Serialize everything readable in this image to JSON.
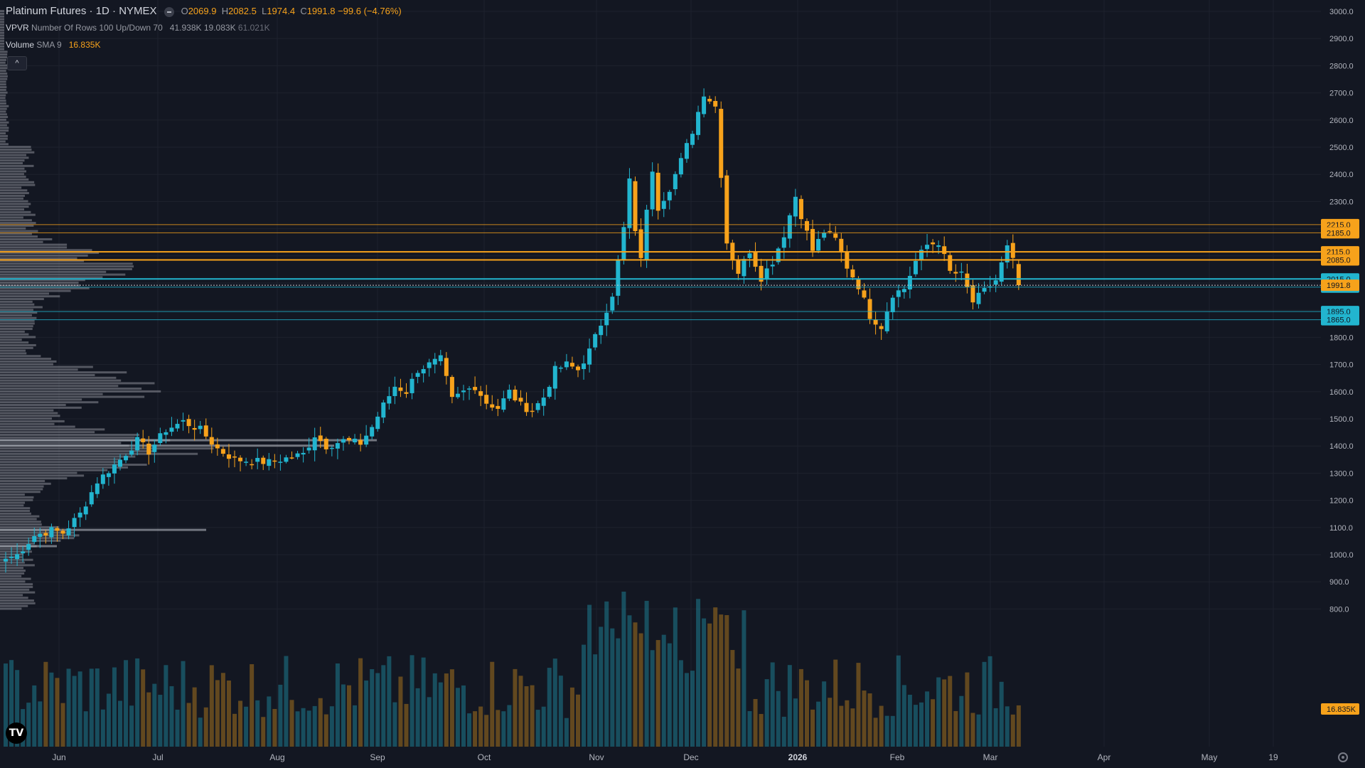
{
  "header": {
    "title": "Platinum Futures · 1D · NYMEX",
    "o_label": "O",
    "o_value": "2069.9",
    "h_label": "H",
    "h_value": "2082.5",
    "l_label": "L",
    "l_value": "1974.4",
    "c_label": "C",
    "c_value": "1991.8",
    "change": "−99.6 (−4.76%)"
  },
  "vpvr": {
    "name": "VPVR",
    "params": "Number Of Rows 100 Up/Down 70",
    "v1": "41.938K",
    "v2": "19.083K",
    "v3": "61.021K"
  },
  "volume_indicator": {
    "name": "Volume",
    "params": "SMA 9",
    "value": "16.835K"
  },
  "collapse_label": "^",
  "logo_text": "TV",
  "colors": {
    "background": "#131722",
    "up": "#22b5cf",
    "down": "#f7a21b",
    "grid": "#1e222d",
    "axis_text": "#b2b5be",
    "profile": "#8a8d96",
    "profile_highlight": "#b2b5be"
  },
  "chart_data": {
    "type": "candlestick",
    "y_axis": {
      "min": 800,
      "max": 3000,
      "ticks": [
        "3000.0",
        "2900.0",
        "2800.0",
        "2700.0",
        "2600.0",
        "2500.0",
        "2400.0",
        "2300.0",
        "2200.0",
        "2100.0",
        "2000.0",
        "1900.0",
        "1800.0",
        "1700.0",
        "1600.0",
        "1500.0",
        "1400.0",
        "1300.0",
        "1200.0",
        "1100.0",
        "1000.0",
        "900.0",
        "800.0"
      ]
    },
    "x_axis": {
      "labels": [
        "Jun",
        "Jul",
        "Aug",
        "Sep",
        "Oct",
        "Nov",
        "Dec",
        "2026",
        "Feb",
        "Mar",
        "Apr",
        "May",
        "19"
      ]
    },
    "anchors": [
      {
        "i": 0,
        "c": 985
      },
      {
        "i": 2,
        "c": 1000
      },
      {
        "i": 5,
        "c": 1070
      },
      {
        "i": 8,
        "c": 1090
      },
      {
        "i": 10,
        "c": 1080
      },
      {
        "i": 13,
        "c": 1150
      },
      {
        "i": 16,
        "c": 1270
      },
      {
        "i": 18,
        "c": 1310
      },
      {
        "i": 20,
        "c": 1350
      },
      {
        "i": 23,
        "c": 1420
      },
      {
        "i": 25,
        "c": 1380
      },
      {
        "i": 28,
        "c": 1460
      },
      {
        "i": 31,
        "c": 1490
      },
      {
        "i": 34,
        "c": 1460
      },
      {
        "i": 37,
        "c": 1390
      },
      {
        "i": 40,
        "c": 1350
      },
      {
        "i": 43,
        "c": 1345
      },
      {
        "i": 46,
        "c": 1340
      },
      {
        "i": 49,
        "c": 1355
      },
      {
        "i": 52,
        "c": 1370
      },
      {
        "i": 54,
        "c": 1440
      },
      {
        "i": 56,
        "c": 1400
      },
      {
        "i": 59,
        "c": 1420
      },
      {
        "i": 62,
        "c": 1410
      },
      {
        "i": 64,
        "c": 1470
      },
      {
        "i": 66,
        "c": 1550
      },
      {
        "i": 68,
        "c": 1620
      },
      {
        "i": 70,
        "c": 1600
      },
      {
        "i": 72,
        "c": 1680
      },
      {
        "i": 74,
        "c": 1700
      },
      {
        "i": 76,
        "c": 1720
      },
      {
        "i": 78,
        "c": 1570
      },
      {
        "i": 80,
        "c": 1600
      },
      {
        "i": 82,
        "c": 1620
      },
      {
        "i": 84,
        "c": 1560
      },
      {
        "i": 86,
        "c": 1540
      },
      {
        "i": 88,
        "c": 1600
      },
      {
        "i": 90,
        "c": 1550
      },
      {
        "i": 92,
        "c": 1530
      },
      {
        "i": 94,
        "c": 1580
      },
      {
        "i": 96,
        "c": 1680
      },
      {
        "i": 98,
        "c": 1700
      },
      {
        "i": 100,
        "c": 1680
      },
      {
        "i": 102,
        "c": 1750
      },
      {
        "i": 104,
        "c": 1850
      },
      {
        "i": 106,
        "c": 1960
      },
      {
        "i": 108,
        "c": 2200
      },
      {
        "i": 109,
        "c": 2380
      },
      {
        "i": 110,
        "c": 2180
      },
      {
        "i": 111,
        "c": 2100
      },
      {
        "i": 113,
        "c": 2420
      },
      {
        "i": 114,
        "c": 2280
      },
      {
        "i": 116,
        "c": 2350
      },
      {
        "i": 118,
        "c": 2450
      },
      {
        "i": 120,
        "c": 2560
      },
      {
        "i": 122,
        "c": 2700
      },
      {
        "i": 124,
        "c": 2650
      },
      {
        "i": 126,
        "c": 2150
      },
      {
        "i": 128,
        "c": 2040
      },
      {
        "i": 130,
        "c": 2120
      },
      {
        "i": 132,
        "c": 2020
      },
      {
        "i": 134,
        "c": 2080
      },
      {
        "i": 136,
        "c": 2180
      },
      {
        "i": 138,
        "c": 2320
      },
      {
        "i": 139,
        "c": 2250
      },
      {
        "i": 141,
        "c": 2120
      },
      {
        "i": 143,
        "c": 2190
      },
      {
        "i": 145,
        "c": 2160
      },
      {
        "i": 147,
        "c": 2060
      },
      {
        "i": 149,
        "c": 1990
      },
      {
        "i": 151,
        "c": 1880
      },
      {
        "i": 153,
        "c": 1840
      },
      {
        "i": 155,
        "c": 1960
      },
      {
        "i": 157,
        "c": 1980
      },
      {
        "i": 159,
        "c": 2080
      },
      {
        "i": 161,
        "c": 2140
      },
      {
        "i": 163,
        "c": 2150
      },
      {
        "i": 165,
        "c": 2040
      },
      {
        "i": 167,
        "c": 2030
      },
      {
        "i": 169,
        "c": 1930
      },
      {
        "i": 171,
        "c": 1970
      },
      {
        "i": 173,
        "c": 2010
      },
      {
        "i": 175,
        "c": 2130
      },
      {
        "i": 176,
        "c": 2080
      },
      {
        "i": 177,
        "c": 1992
      }
    ],
    "horizontal_levels": [
      {
        "price": 2215,
        "label": "2215.0",
        "color": "#f7a21b",
        "bold": false
      },
      {
        "price": 2185,
        "label": "2185.0",
        "color": "#f7a21b",
        "bold": false
      },
      {
        "price": 2115,
        "label": "2115.0",
        "color": "#f7a21b",
        "bold": true
      },
      {
        "price": 2085,
        "label": "2085.0",
        "color": "#f7a21b",
        "bold": true
      },
      {
        "price": 2015,
        "label": "2015.0",
        "color": "#22b5cf",
        "bold": true
      },
      {
        "price": 1985,
        "label": "1985.0",
        "color": "#22b5cf",
        "bold": false
      },
      {
        "price": 1895,
        "label": "1895.0",
        "color": "#22b5cf",
        "bold": false
      },
      {
        "price": 1865,
        "label": "1865.0",
        "color": "#22b5cf",
        "bold": false
      }
    ],
    "last_price": {
      "price": 1991.8,
      "label": "1991.8",
      "color": "#f7a21b"
    },
    "volume_label": {
      "label": "16.835K",
      "color": "#f7a21b"
    }
  }
}
